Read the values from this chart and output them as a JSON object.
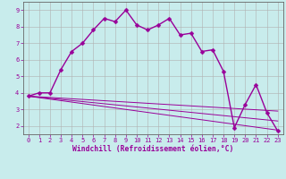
{
  "xlabel": "Windchill (Refroidissement éolien,°C)",
  "bg_color": "#c8ecec",
  "grid_color": "#b0b0b0",
  "line_color": "#990099",
  "x_ticks": [
    0,
    1,
    2,
    3,
    4,
    5,
    6,
    7,
    8,
    9,
    10,
    11,
    12,
    13,
    14,
    15,
    16,
    17,
    18,
    19,
    20,
    21,
    22,
    23
  ],
  "y_ticks": [
    2,
    3,
    4,
    5,
    6,
    7,
    8,
    9
  ],
  "ylim": [
    1.5,
    9.5
  ],
  "xlim": [
    -0.5,
    23.5
  ],
  "series": [
    {
      "x": [
        0,
        1,
        2,
        3,
        4,
        5,
        6,
        7,
        8,
        9,
        10,
        11,
        12,
        13,
        14,
        15,
        16,
        17,
        18,
        19,
        20,
        21,
        22,
        23
      ],
      "y": [
        3.8,
        4.0,
        4.0,
        5.4,
        6.5,
        7.0,
        7.8,
        8.5,
        8.3,
        9.0,
        8.1,
        7.8,
        8.1,
        8.5,
        7.5,
        7.6,
        6.5,
        6.6,
        5.3,
        1.9,
        3.3,
        4.5,
        2.8,
        1.7
      ],
      "marker": "D",
      "markersize": 2.5,
      "linewidth": 1.0,
      "has_marker": true
    },
    {
      "x": [
        0,
        23
      ],
      "y": [
        3.8,
        2.9
      ],
      "marker": null,
      "linewidth": 0.7,
      "has_marker": false
    },
    {
      "x": [
        0,
        23
      ],
      "y": [
        3.8,
        2.3
      ],
      "marker": null,
      "linewidth": 0.7,
      "has_marker": false
    },
    {
      "x": [
        0,
        23
      ],
      "y": [
        3.8,
        1.75
      ],
      "marker": null,
      "linewidth": 0.7,
      "has_marker": false
    }
  ],
  "xlabel_fontsize": 5.8,
  "tick_fontsize": 5.0,
  "spine_color": "#666666"
}
